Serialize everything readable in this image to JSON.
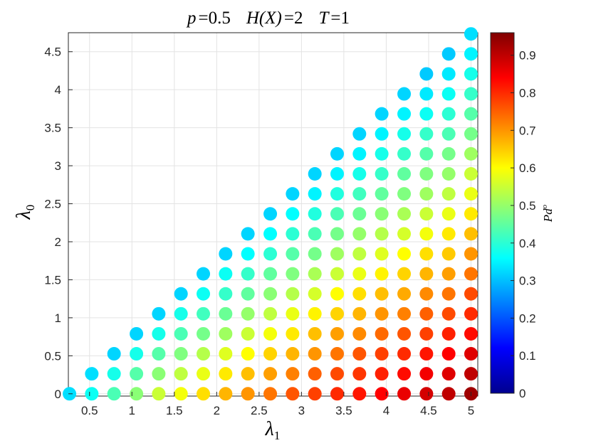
{
  "chart_data": {
    "type": "scatter",
    "title_parts": [
      {
        "var": "p",
        "op": "=",
        "val": "0.5"
      },
      {
        "var": "H(X)",
        "op": "=",
        "val": "2"
      },
      {
        "var": "T",
        "op": "=",
        "val": "1"
      }
    ],
    "xlabel": "λ",
    "xlabel_sub": "1",
    "ylabel": "λ",
    "ylabel_sub": "0",
    "colorbar_label": "Pd",
    "colorbar_label_sup": "o",
    "xlim": [
      0.25,
      5.08
    ],
    "ylim": [
      -0.03,
      4.75
    ],
    "xticks": [
      "0.5",
      "1",
      "1.5",
      "2",
      "2.5",
      "3",
      "3.5",
      "4",
      "4.5",
      "5"
    ],
    "yticks": [
      "0",
      "0.5",
      "1",
      "1.5",
      "2",
      "2.5",
      "3",
      "3.5",
      "4",
      "4.5"
    ],
    "colorbar_ticks": [
      "0",
      "0.1",
      "0.2",
      "0.3",
      "0.4",
      "0.5",
      "0.6",
      "0.7",
      "0.8",
      "0.9"
    ],
    "colorbar_range": [
      0,
      0.96
    ],
    "colormap": "jet",
    "grid": true,
    "marker": "filled-circle",
    "x_values": [
      0.263,
      0.526,
      0.789,
      1.053,
      1.316,
      1.579,
      1.842,
      2.105,
      2.368,
      2.632,
      2.895,
      3.158,
      3.421,
      3.684,
      3.947,
      4.211,
      4.474,
      4.737,
      5.0
    ],
    "columns": [
      {
        "x": 0.263,
        "y_start": 0.0,
        "pd": [
          0.33
        ]
      },
      {
        "x": 0.526,
        "y_start": 0.0,
        "pd": [
          0.37,
          0.33
        ]
      },
      {
        "x": 0.789,
        "y_start": 0.0,
        "pd": [
          0.43,
          0.38,
          0.32
        ]
      },
      {
        "x": 1.053,
        "y_start": 0.0,
        "pd": [
          0.49,
          0.44,
          0.38,
          0.32
        ]
      },
      {
        "x": 1.316,
        "y_start": 0.0,
        "pd": [
          0.55,
          0.49,
          0.44,
          0.38,
          0.32
        ]
      },
      {
        "x": 1.579,
        "y_start": 0.0,
        "pd": [
          0.59,
          0.54,
          0.48,
          0.43,
          0.38,
          0.32
        ]
      },
      {
        "x": 1.842,
        "y_start": 0.0,
        "pd": [
          0.63,
          0.58,
          0.53,
          0.47,
          0.42,
          0.37,
          0.32
        ]
      },
      {
        "x": 2.105,
        "y_start": 0.0,
        "pd": [
          0.67,
          0.62,
          0.57,
          0.51,
          0.46,
          0.41,
          0.37,
          0.32
        ]
      },
      {
        "x": 2.368,
        "y_start": 0.0,
        "pd": [
          0.7,
          0.66,
          0.6,
          0.55,
          0.5,
          0.45,
          0.41,
          0.36,
          0.32
        ]
      },
      {
        "x": 2.632,
        "y_start": 0.0,
        "pd": [
          0.73,
          0.69,
          0.64,
          0.59,
          0.54,
          0.49,
          0.45,
          0.4,
          0.36,
          0.32
        ]
      },
      {
        "x": 2.895,
        "y_start": 0.0,
        "pd": [
          0.76,
          0.72,
          0.67,
          0.62,
          0.58,
          0.53,
          0.48,
          0.44,
          0.4,
          0.36,
          0.32
        ]
      },
      {
        "x": 3.158,
        "y_start": 0.0,
        "pd": [
          0.78,
          0.75,
          0.7,
          0.66,
          0.61,
          0.56,
          0.52,
          0.47,
          0.43,
          0.39,
          0.35,
          0.32
        ]
      },
      {
        "x": 3.421,
        "y_start": 0.0,
        "pd": [
          0.8,
          0.77,
          0.73,
          0.69,
          0.64,
          0.6,
          0.55,
          0.51,
          0.47,
          0.43,
          0.39,
          0.35,
          0.32
        ]
      },
      {
        "x": 3.684,
        "y_start": 0.0,
        "pd": [
          0.82,
          0.79,
          0.76,
          0.71,
          0.67,
          0.63,
          0.58,
          0.54,
          0.5,
          0.46,
          0.42,
          0.38,
          0.35,
          0.32
        ]
      },
      {
        "x": 3.947,
        "y_start": 0.0,
        "pd": [
          0.84,
          0.81,
          0.78,
          0.74,
          0.7,
          0.66,
          0.61,
          0.57,
          0.53,
          0.49,
          0.45,
          0.41,
          0.38,
          0.35,
          0.32
        ]
      },
      {
        "x": 4.211,
        "y_start": 0.0,
        "pd": [
          0.86,
          0.83,
          0.8,
          0.76,
          0.72,
          0.68,
          0.64,
          0.6,
          0.56,
          0.52,
          0.48,
          0.45,
          0.41,
          0.38,
          0.35,
          0.32
        ]
      },
      {
        "x": 4.474,
        "y_start": 0.0,
        "pd": [
          0.88,
          0.85,
          0.82,
          0.78,
          0.75,
          0.71,
          0.67,
          0.63,
          0.59,
          0.55,
          0.51,
          0.48,
          0.44,
          0.41,
          0.37,
          0.34,
          0.31
        ]
      },
      {
        "x": 4.737,
        "y_start": 0.0,
        "pd": [
          0.9,
          0.87,
          0.84,
          0.81,
          0.77,
          0.73,
          0.69,
          0.65,
          0.62,
          0.58,
          0.54,
          0.5,
          0.47,
          0.43,
          0.4,
          0.37,
          0.34,
          0.31
        ]
      },
      {
        "x": 5.0,
        "y_start": 0.0,
        "pd": [
          0.93,
          0.9,
          0.87,
          0.83,
          0.8,
          0.77,
          0.73,
          0.7,
          0.66,
          0.62,
          0.58,
          0.55,
          0.51,
          0.47,
          0.44,
          0.41,
          0.38,
          0.35,
          0.33
        ]
      }
    ]
  }
}
